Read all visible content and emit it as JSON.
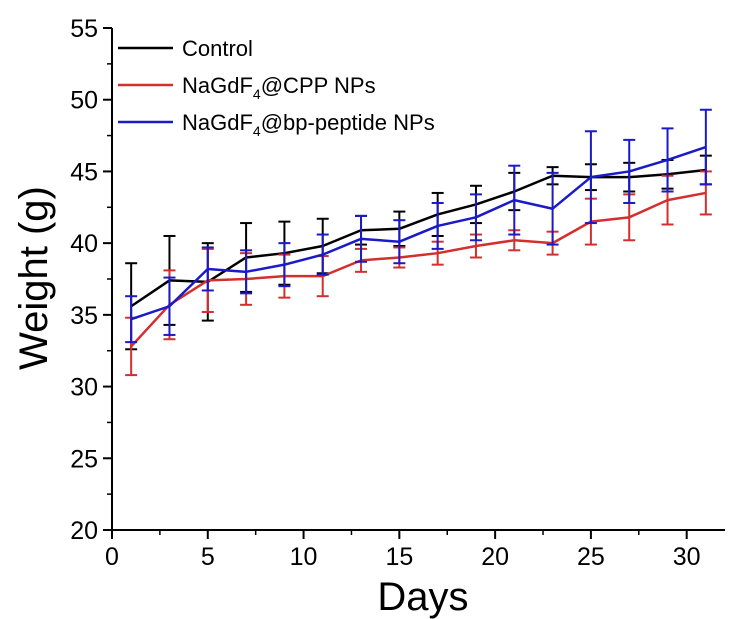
{
  "chart_data": {
    "type": "line",
    "xlabel": "Days",
    "ylabel": "Weight (g)",
    "xlim": [
      0,
      32
    ],
    "ylim": [
      20,
      55
    ],
    "x_ticks": [
      0,
      5,
      10,
      15,
      20,
      25,
      30
    ],
    "y_ticks": [
      20,
      25,
      30,
      35,
      40,
      45,
      50,
      55
    ],
    "grid": false,
    "legend_position": "top-left",
    "x": [
      1,
      3,
      5,
      7,
      9,
      11,
      13,
      15,
      17,
      19,
      21,
      23,
      25,
      27,
      29,
      31
    ],
    "series": [
      {
        "name": "Control",
        "legend_parts": [
          "Control",
          "",
          ""
        ],
        "color": "#000000",
        "values": [
          35.6,
          37.4,
          37.3,
          39.0,
          39.3,
          39.8,
          40.9,
          41.0,
          42.0,
          42.7,
          43.6,
          44.7,
          44.6,
          44.6,
          44.8,
          45.1
        ],
        "errors": [
          3.0,
          3.1,
          2.7,
          2.4,
          2.2,
          1.9,
          1.0,
          1.2,
          1.5,
          1.3,
          1.3,
          0.6,
          0.9,
          1.0,
          1.0,
          1.0
        ]
      },
      {
        "name": "NaGdF4@CPP NPs",
        "legend_parts": [
          "NaGdF",
          "4",
          "@CPP NPs"
        ],
        "color": "#d32f2f",
        "values": [
          32.8,
          35.7,
          37.4,
          37.5,
          37.7,
          37.7,
          38.8,
          39.0,
          39.3,
          39.8,
          40.2,
          40.0,
          41.5,
          41.8,
          43.0,
          43.5
        ],
        "errors": [
          2.0,
          2.4,
          2.2,
          1.8,
          1.5,
          1.4,
          0.8,
          0.7,
          0.8,
          0.8,
          0.7,
          0.8,
          1.6,
          1.6,
          1.7,
          1.5
        ]
      },
      {
        "name": "NaGdF4@bp-peptide NPs",
        "legend_parts": [
          "NaGdF",
          "4",
          "@bp-peptide NPs"
        ],
        "color": "#1a1ac8",
        "values": [
          34.7,
          35.6,
          38.2,
          38.0,
          38.5,
          39.2,
          40.3,
          40.1,
          41.2,
          41.8,
          43.0,
          42.4,
          44.6,
          45.0,
          45.8,
          46.7
        ],
        "errors": [
          1.6,
          2.0,
          1.5,
          1.5,
          1.5,
          1.4,
          1.6,
          1.5,
          1.6,
          1.6,
          2.4,
          2.5,
          3.2,
          2.2,
          2.2,
          2.6
        ]
      }
    ]
  }
}
